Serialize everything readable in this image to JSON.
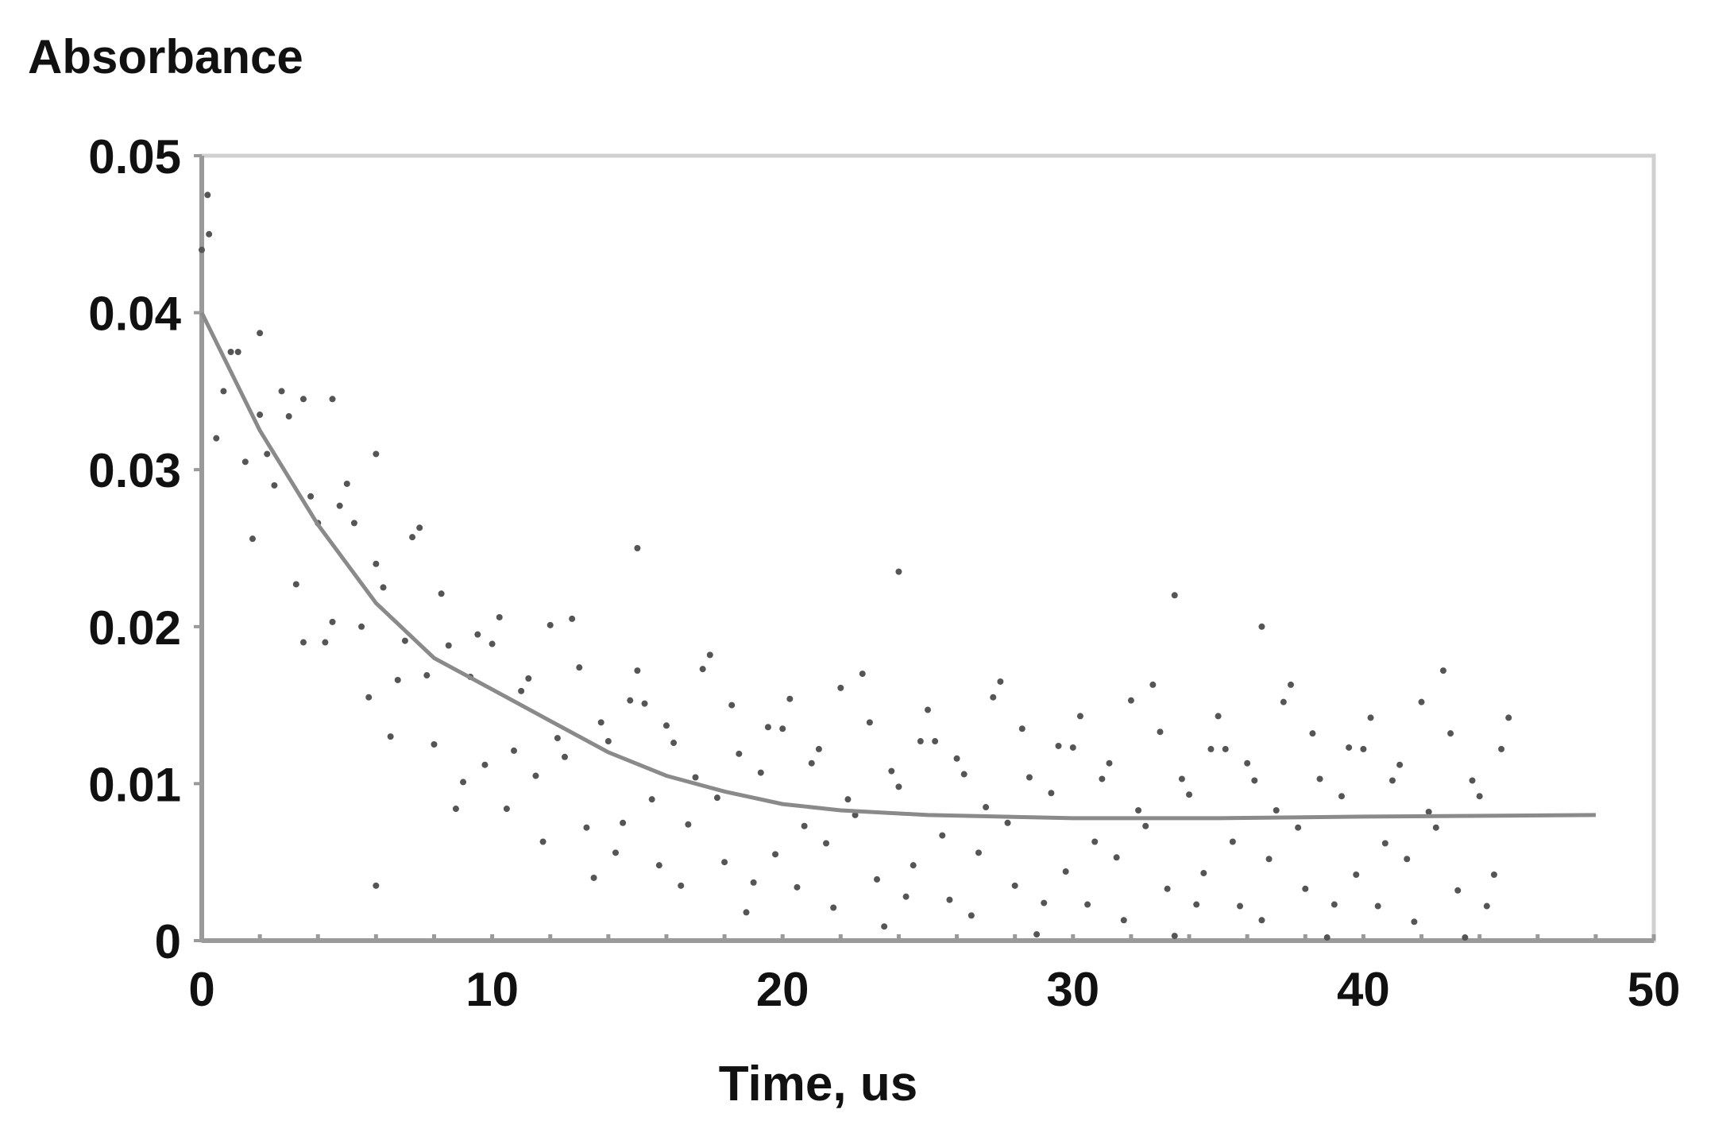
{
  "chart_data": {
    "type": "scatter",
    "ylabel": "Absorbance",
    "xlabel": "Time, us",
    "xlim": [
      0,
      50
    ],
    "ylim": [
      0,
      0.05
    ],
    "xticks": [
      "0",
      "10",
      "20",
      "30",
      "40",
      "50"
    ],
    "yticks": [
      "0",
      "0.01",
      "0.02",
      "0.03",
      "0.04",
      "0.05"
    ],
    "grid": false,
    "legend": "none",
    "colors": {
      "points": "#555555",
      "fit": "#8a8a8a",
      "axis": "#9a9a9a",
      "frame": "#d0d0d0"
    },
    "series": [
      {
        "kind": "points",
        "points": [
          [
            0,
            0.044
          ],
          [
            0.5,
            0.032
          ],
          [
            1,
            0.0375
          ],
          [
            1.5,
            0.0305
          ],
          [
            2,
            0.0387
          ],
          [
            2.5,
            0.029
          ],
          [
            3,
            0.0334
          ],
          [
            3.5,
            0.019
          ],
          [
            4,
            0.0266
          ],
          [
            4.5,
            0.0203
          ],
          [
            5,
            0.0291
          ],
          [
            5.5,
            0.02
          ],
          [
            6,
            0.024
          ],
          [
            6.5,
            0.013
          ],
          [
            7,
            0.0191
          ],
          [
            7.5,
            0.0263
          ],
          [
            8,
            0.0125
          ],
          [
            8.5,
            0.0188
          ],
          [
            9,
            0.0101
          ],
          [
            9.5,
            0.0195
          ],
          [
            10,
            0.0189
          ],
          [
            10.5,
            0.0084
          ],
          [
            11,
            0.0159
          ],
          [
            11.5,
            0.0105
          ],
          [
            12,
            0.0201
          ],
          [
            12.5,
            0.0117
          ],
          [
            13,
            0.0174
          ],
          [
            13.5,
            0.004
          ],
          [
            14,
            0.0127
          ],
          [
            14.5,
            0.0075
          ],
          [
            15,
            0.0172
          ],
          [
            15.5,
            0.009
          ],
          [
            16,
            0.0137
          ],
          [
            16.5,
            0.0035
          ],
          [
            17,
            0.0104
          ],
          [
            17.5,
            0.0182
          ],
          [
            18,
            0.005
          ],
          [
            18.5,
            0.0119
          ],
          [
            19,
            0.0037
          ],
          [
            19.5,
            0.0136
          ],
          [
            20,
            0.0135
          ],
          [
            20.5,
            0.0034
          ],
          [
            21,
            0.0113
          ],
          [
            21.5,
            0.0062
          ],
          [
            22,
            0.0161
          ],
          [
            22.5,
            0.008
          ],
          [
            23,
            0.0139
          ],
          [
            23.5,
            0.0009
          ],
          [
            24,
            0.0098
          ],
          [
            24.5,
            0.0048
          ],
          [
            25,
            0.0147
          ],
          [
            25.5,
            0.0067
          ],
          [
            26,
            0.0116
          ],
          [
            26.5,
            0.0016
          ],
          [
            27,
            0.0085
          ],
          [
            27.5,
            0.0165
          ],
          [
            28,
            0.0035
          ],
          [
            28.5,
            0.0104
          ],
          [
            29,
            0.0024
          ],
          [
            29.5,
            0.0124
          ],
          [
            30,
            0.0123
          ],
          [
            30.5,
            0.0023
          ],
          [
            31,
            0.0103
          ],
          [
            31.5,
            0.0053
          ],
          [
            32,
            0.0153
          ],
          [
            32.5,
            0.0073
          ],
          [
            33,
            0.0133
          ],
          [
            33.5,
            0.0003
          ],
          [
            34,
            0.0093
          ],
          [
            34.5,
            0.0043
          ],
          [
            35,
            0.0143
          ],
          [
            35.5,
            0.0063
          ],
          [
            36,
            0.0113
          ],
          [
            36.5,
            0.0013
          ],
          [
            37,
            0.0083
          ],
          [
            37.5,
            0.0163
          ],
          [
            38,
            0.0033
          ],
          [
            38.5,
            0.0103
          ],
          [
            39,
            0.0023
          ],
          [
            39.5,
            0.0123
          ],
          [
            40,
            0.0122
          ],
          [
            40.5,
            0.0022
          ],
          [
            41,
            0.0102
          ],
          [
            41.5,
            0.0052
          ],
          [
            42,
            0.0152
          ],
          [
            42.5,
            0.0072
          ],
          [
            43,
            0.0132
          ],
          [
            43.5,
            0.0002
          ],
          [
            44,
            0.0092
          ],
          [
            44.5,
            0.0042
          ],
          [
            45,
            0.0142
          ],
          [
            0.25,
            0.045
          ],
          [
            0.75,
            0.035
          ],
          [
            1.25,
            0.0375
          ],
          [
            1.75,
            0.0256
          ],
          [
            2.25,
            0.031
          ],
          [
            2.75,
            0.035
          ],
          [
            3.25,
            0.0227
          ],
          [
            3.75,
            0.0283
          ],
          [
            4.25,
            0.019
          ],
          [
            4.75,
            0.0277
          ],
          [
            5.25,
            0.0266
          ],
          [
            5.75,
            0.0155
          ],
          [
            6.25,
            0.0225
          ],
          [
            6.75,
            0.0166
          ],
          [
            7.25,
            0.0257
          ],
          [
            7.75,
            0.0169
          ],
          [
            8.25,
            0.0221
          ],
          [
            8.75,
            0.0084
          ],
          [
            9.25,
            0.0168
          ],
          [
            9.75,
            0.0112
          ],
          [
            10.25,
            0.0206
          ],
          [
            10.75,
            0.0121
          ],
          [
            11.25,
            0.0167
          ],
          [
            11.75,
            0.0063
          ],
          [
            12.25,
            0.0129
          ],
          [
            12.75,
            0.0205
          ],
          [
            13.25,
            0.0072
          ],
          [
            13.75,
            0.0139
          ],
          [
            14.25,
            0.0056
          ],
          [
            14.75,
            0.0153
          ],
          [
            15.25,
            0.0151
          ],
          [
            15.75,
            0.0048
          ],
          [
            16.25,
            0.0126
          ],
          [
            16.75,
            0.0074
          ],
          [
            17.25,
            0.0173
          ],
          [
            17.75,
            0.0091
          ],
          [
            18.25,
            0.015
          ],
          [
            18.75,
            0.0018
          ],
          [
            19.25,
            0.0107
          ],
          [
            19.75,
            0.0055
          ],
          [
            20.25,
            0.0154
          ],
          [
            20.75,
            0.0073
          ],
          [
            21.25,
            0.0122
          ],
          [
            21.75,
            0.0021
          ],
          [
            22.25,
            0.009
          ],
          [
            22.75,
            0.017
          ],
          [
            23.25,
            0.0039
          ],
          [
            23.75,
            0.0108
          ],
          [
            24.25,
            0.0028
          ],
          [
            24.75,
            0.0127
          ],
          [
            25.25,
            0.0127
          ],
          [
            25.75,
            0.0026
          ],
          [
            26.25,
            0.0106
          ],
          [
            26.75,
            0.0056
          ],
          [
            27.25,
            0.0155
          ],
          [
            27.75,
            0.0075
          ],
          [
            28.25,
            0.0135
          ],
          [
            28.75,
            0.0004
          ],
          [
            29.25,
            0.0094
          ],
          [
            29.75,
            0.0044
          ],
          [
            30.25,
            0.0143
          ],
          [
            30.75,
            0.0063
          ],
          [
            31.25,
            0.0113
          ],
          [
            31.75,
            0.0013
          ],
          [
            32.25,
            0.0083
          ],
          [
            32.75,
            0.0163
          ],
          [
            33.25,
            0.0033
          ],
          [
            33.75,
            0.0103
          ],
          [
            34.25,
            0.0023
          ],
          [
            34.75,
            0.0122
          ],
          [
            35.25,
            0.0122
          ],
          [
            35.75,
            0.0022
          ],
          [
            36.25,
            0.0102
          ],
          [
            36.75,
            0.0052
          ],
          [
            37.25,
            0.0152
          ],
          [
            37.75,
            0.0072
          ],
          [
            38.25,
            0.0132
          ],
          [
            38.75,
            0.0002
          ],
          [
            39.25,
            0.0092
          ],
          [
            39.75,
            0.0042
          ],
          [
            40.25,
            0.0142
          ],
          [
            40.75,
            0.0062
          ],
          [
            41.25,
            0.0112
          ],
          [
            41.75,
            0.0012
          ],
          [
            42.25,
            0.0082
          ],
          [
            42.75,
            0.0172
          ],
          [
            43.25,
            0.0032
          ],
          [
            43.75,
            0.0102
          ],
          [
            44.25,
            0.0022
          ],
          [
            44.75,
            0.0122
          ],
          [
            24,
            0.0235
          ],
          [
            33.5,
            0.022
          ],
          [
            36.5,
            0.02
          ],
          [
            15,
            0.025
          ],
          [
            6,
            0.0035
          ],
          [
            0.2,
            0.0475
          ],
          [
            4.5,
            0.0345
          ],
          [
            6,
            0.031
          ],
          [
            2,
            0.0335
          ],
          [
            3.5,
            0.0345
          ]
        ]
      },
      {
        "kind": "fit-line",
        "points": [
          [
            0,
            0.04
          ],
          [
            2,
            0.0325
          ],
          [
            4,
            0.0265
          ],
          [
            6,
            0.0215
          ],
          [
            8,
            0.018
          ],
          [
            10,
            0.016
          ],
          [
            12,
            0.014
          ],
          [
            14,
            0.012
          ],
          [
            16,
            0.0105
          ],
          [
            18,
            0.0095
          ],
          [
            20,
            0.0087
          ],
          [
            22,
            0.0083
          ],
          [
            25,
            0.008
          ],
          [
            30,
            0.0078
          ],
          [
            35,
            0.0078
          ],
          [
            40,
            0.0079
          ],
          [
            48,
            0.008
          ]
        ]
      }
    ]
  }
}
